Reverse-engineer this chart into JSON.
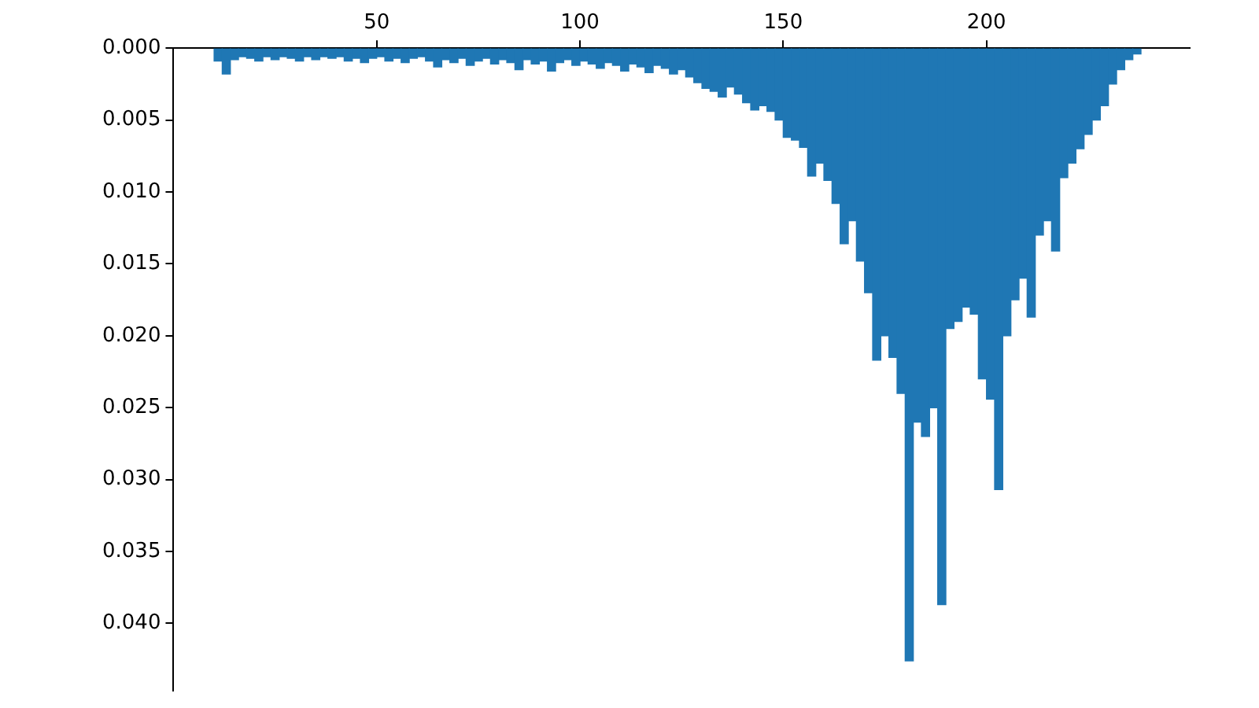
{
  "chart_data": {
    "type": "histogram",
    "color": "#1f77b4",
    "bins": [
      10,
      12,
      14,
      16,
      18,
      20,
      22,
      24,
      26,
      28,
      30,
      32,
      34,
      36,
      38,
      40,
      42,
      44,
      46,
      48,
      50,
      52,
      54,
      56,
      58,
      60,
      62,
      64,
      66,
      68,
      70,
      72,
      74,
      76,
      78,
      80,
      82,
      84,
      86,
      88,
      90,
      92,
      94,
      96,
      98,
      100,
      102,
      104,
      106,
      108,
      110,
      112,
      114,
      116,
      118,
      120,
      122,
      124,
      126,
      128,
      130,
      132,
      134,
      136,
      138,
      140,
      142,
      144,
      146,
      148,
      150,
      152,
      154,
      156,
      158,
      160,
      162,
      164,
      166,
      168,
      170,
      172,
      174,
      176,
      178,
      180,
      182,
      184,
      186,
      188,
      190,
      192,
      194,
      196,
      198,
      200,
      202,
      204,
      206,
      208,
      210,
      212,
      214,
      216,
      218,
      220,
      222,
      224,
      226,
      228,
      230,
      232,
      234,
      236,
      238
    ],
    "values": [
      0.0009,
      0.0018,
      0.0008,
      0.0006,
      0.0007,
      0.0009,
      0.0006,
      0.0008,
      0.0006,
      0.0007,
      0.0009,
      0.0006,
      0.0008,
      0.0006,
      0.0007,
      0.0006,
      0.0009,
      0.0007,
      0.001,
      0.0007,
      0.0006,
      0.0009,
      0.0007,
      0.001,
      0.0007,
      0.0006,
      0.0009,
      0.0013,
      0.0008,
      0.001,
      0.0007,
      0.0012,
      0.0009,
      0.0007,
      0.0011,
      0.0008,
      0.001,
      0.0015,
      0.0008,
      0.0011,
      0.0009,
      0.0016,
      0.001,
      0.0008,
      0.0012,
      0.0009,
      0.0011,
      0.0014,
      0.001,
      0.0012,
      0.0016,
      0.0011,
      0.0013,
      0.0017,
      0.0012,
      0.0014,
      0.0018,
      0.0015,
      0.002,
      0.0024,
      0.0028,
      0.003,
      0.0034,
      0.0027,
      0.0032,
      0.0038,
      0.0043,
      0.004,
      0.0044,
      0.005,
      0.0062,
      0.0064,
      0.0069,
      0.0089,
      0.008,
      0.0092,
      0.0108,
      0.0136,
      0.012,
      0.0148,
      0.017,
      0.0217,
      0.02,
      0.0215,
      0.024,
      0.0426,
      0.026,
      0.027,
      0.025,
      0.0387,
      0.0195,
      0.019,
      0.018,
      0.0185,
      0.023,
      0.0244,
      0.0307,
      0.02,
      0.0175,
      0.016,
      0.0187,
      0.013,
      0.012,
      0.0141,
      0.009,
      0.008,
      0.007,
      0.006,
      0.005,
      0.004,
      0.0025,
      0.0015,
      0.0008,
      0.0004
    ],
    "xlim": [
      0,
      250
    ],
    "xticks": [
      50,
      100,
      150,
      200
    ],
    "ylim": [
      0.0447,
      0
    ],
    "yticks": [
      {
        "value": 0,
        "label": "0.000"
      },
      {
        "value": 0.005,
        "label": "0.005"
      },
      {
        "value": 0.01,
        "label": "0.010"
      },
      {
        "value": 0.015,
        "label": "0.015"
      },
      {
        "value": 0.02,
        "label": "0.020"
      },
      {
        "value": 0.025,
        "label": "0.025"
      },
      {
        "value": 0.03,
        "label": "0.030"
      },
      {
        "value": 0.035,
        "label": "0.035"
      },
      {
        "value": 0.04,
        "label": "0.040"
      }
    ],
    "grid": false
  }
}
